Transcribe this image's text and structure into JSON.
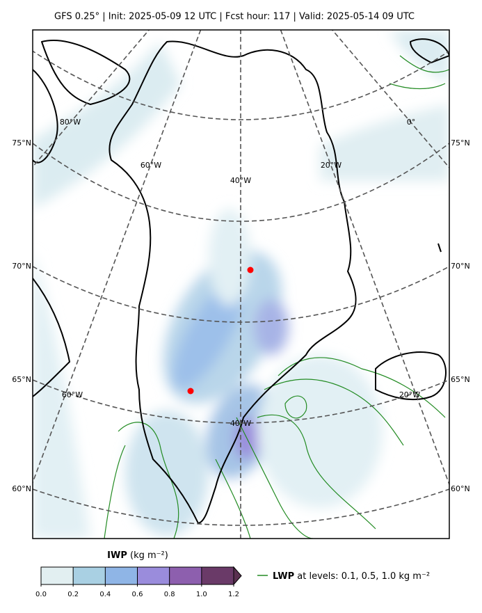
{
  "title": "GFS 0.25° | Init: 2025-05-09 12 UTC | Fcst hour: 117 | Valid: 2025-05-14 09 UTC",
  "map": {
    "lat_labels_left": [
      "75°N",
      "70°N",
      "65°N",
      "60°N"
    ],
    "lat_labels_right": [
      "75°N",
      "70°N",
      "65°N",
      "60°N"
    ],
    "lon_labels": [
      "80°W",
      "60°W",
      "40°W",
      "20°W",
      "0°",
      "60°W",
      "20°W",
      "40°W"
    ]
  },
  "colorbar": {
    "name": "IWP",
    "units": "(kg m⁻²)",
    "lim": [
      0,
      1.2
    ],
    "ticks": [
      {
        "value": 0,
        "label": "0.0"
      },
      0.2,
      0.4,
      0.6,
      0.8,
      {
        "value": 1,
        "label": "1.0"
      },
      1.2
    ],
    "colors": [
      "#e2eff1",
      "#a9d0e3",
      "#8fb5e6",
      "#9a8cdc",
      "#8d5fae",
      "#6a3a68"
    ],
    "extend_color": "#5a3050"
  },
  "legend": {
    "name": "LWP",
    "text": "at levels: 0.1, 0.5, 1.0  kg m⁻²",
    "color": "#228b22"
  }
}
